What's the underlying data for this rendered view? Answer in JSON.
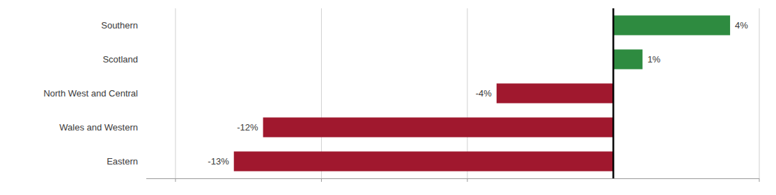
{
  "chart_data": {
    "type": "bar",
    "orientation": "horizontal",
    "categories": [
      "Eastern",
      "Wales and Western",
      "North West and Central",
      "Scotland",
      "Southern"
    ],
    "values": [
      -13,
      -12,
      -4,
      1,
      4
    ],
    "value_labels": [
      "-13%",
      "-12%",
      "-4%",
      "1%",
      "4%"
    ],
    "colors": [
      "#A0182E",
      "#A0182E",
      "#A0182E",
      "#2E8B40",
      "#2E8B40"
    ],
    "xlim": [
      -16,
      5
    ],
    "xticks": [
      -15,
      -10,
      -5,
      5
    ],
    "grid": true,
    "data_labels": true,
    "tick_labels": "y"
  }
}
